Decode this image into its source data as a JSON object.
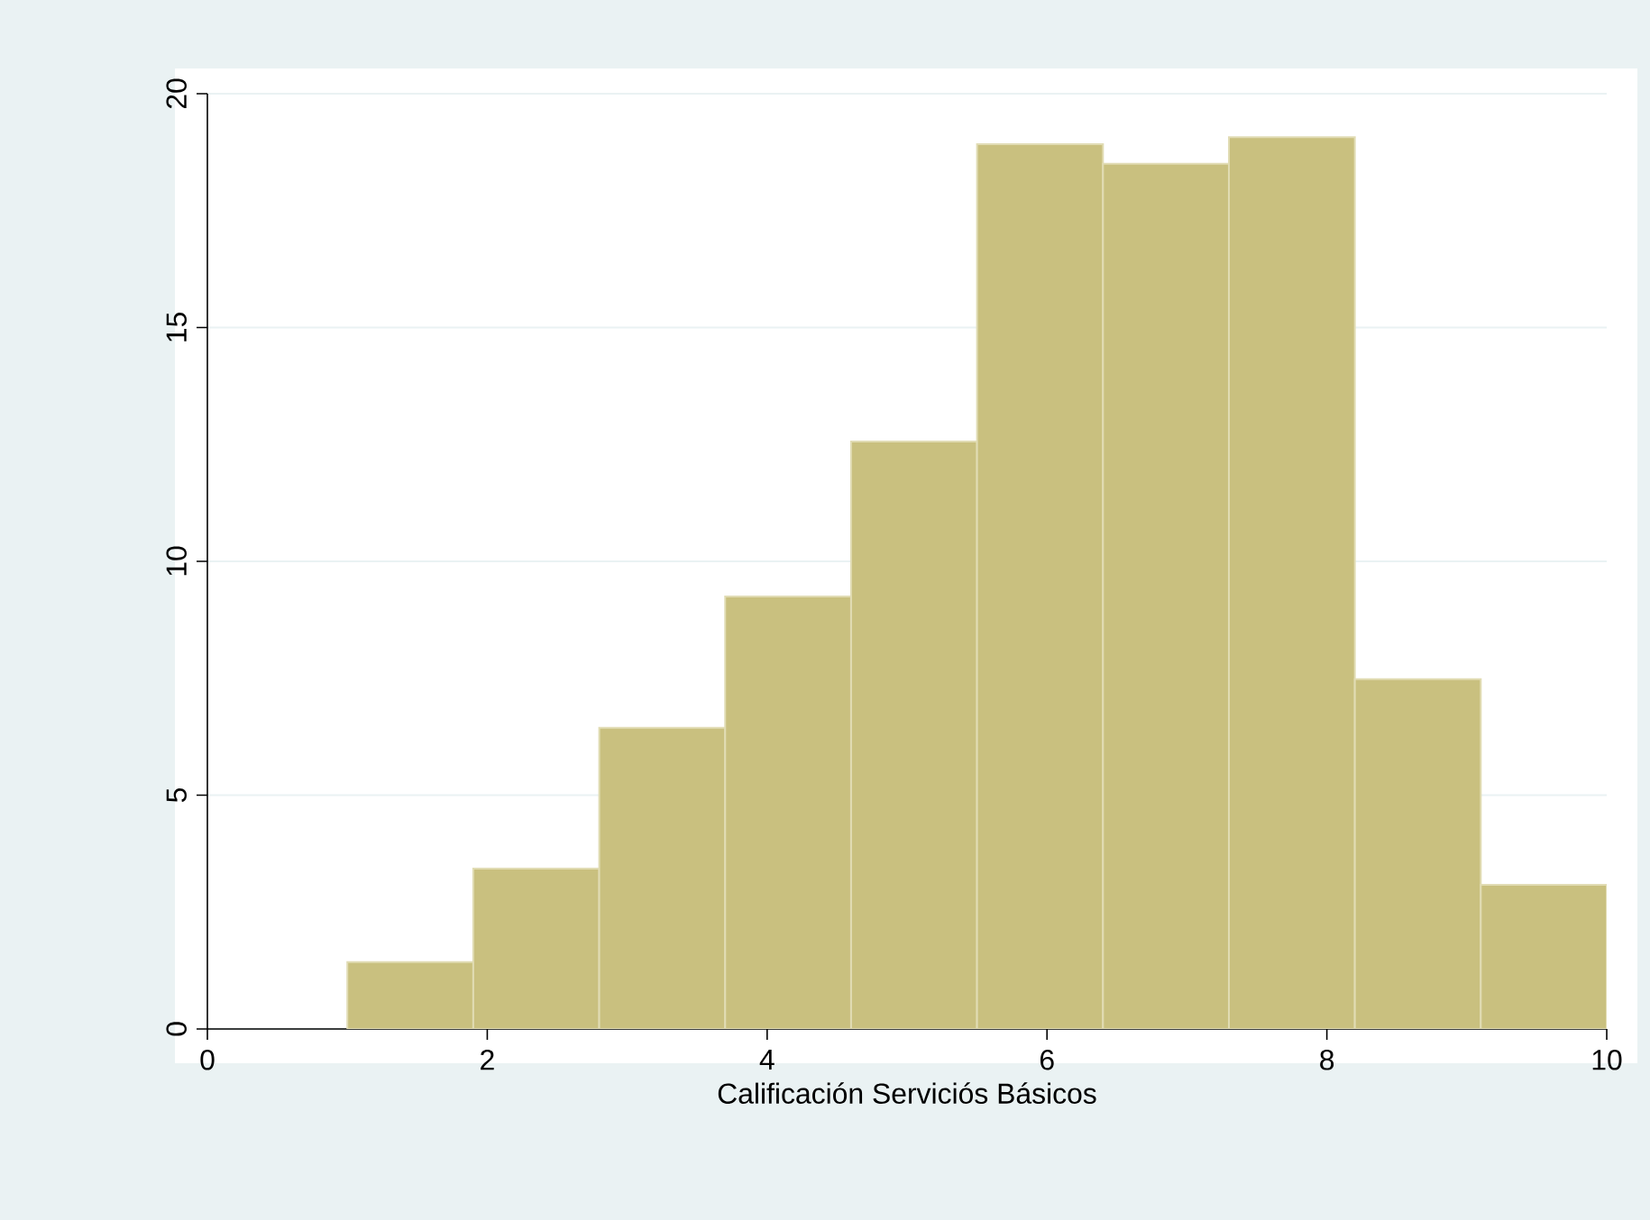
{
  "chart_data": {
    "type": "histogram",
    "xlabel": "Calificación Serviciós Básicos",
    "bins": [
      1,
      1.9,
      2.8,
      3.7,
      4.6,
      5.5,
      6.4,
      7.3,
      8.2,
      9.1,
      10
    ],
    "values": [
      1.43,
      3.43,
      6.44,
      9.25,
      12.56,
      18.92,
      18.5,
      19.07,
      7.48,
      3.08
    ],
    "color": "#c9c07f",
    "xlim": [
      0,
      10
    ],
    "xticks": [
      0,
      2,
      4,
      6,
      8,
      10
    ],
    "ylim": [
      0,
      20
    ],
    "yticks": [
      0,
      5,
      10,
      15,
      20
    ],
    "grid": "y"
  }
}
